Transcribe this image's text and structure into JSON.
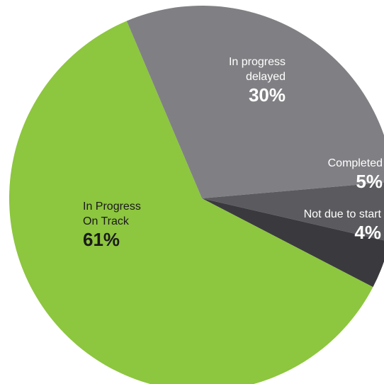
{
  "chart_data": {
    "type": "pie",
    "title": "",
    "slices": [
      {
        "lines": [
          "In Progress",
          "On Track"
        ],
        "label": "In Progress On Track",
        "value": 61,
        "value_label": "61%",
        "color": "#8dc63f",
        "text_color": "#1a1a1a",
        "pct_color": "#1a1a1a"
      },
      {
        "lines": [
          "In progress",
          "delayed"
        ],
        "label": "In progress delayed",
        "value": 30,
        "value_label": "30%",
        "color": "#808084",
        "text_color": "#ffffff",
        "pct_color": "#ffffff"
      },
      {
        "lines": [
          "Completed"
        ],
        "label": "Completed",
        "value": 5,
        "value_label": "5%",
        "color": "#5b5b5f",
        "text_color": "#ffffff",
        "pct_color": "#ffffff"
      },
      {
        "lines": [
          "Not due to start"
        ],
        "label": "Not due to start",
        "value": 4,
        "value_label": "4%",
        "color": "#3a3a3e",
        "text_color": "#ffffff",
        "pct_color": "#ffffff"
      }
    ]
  }
}
